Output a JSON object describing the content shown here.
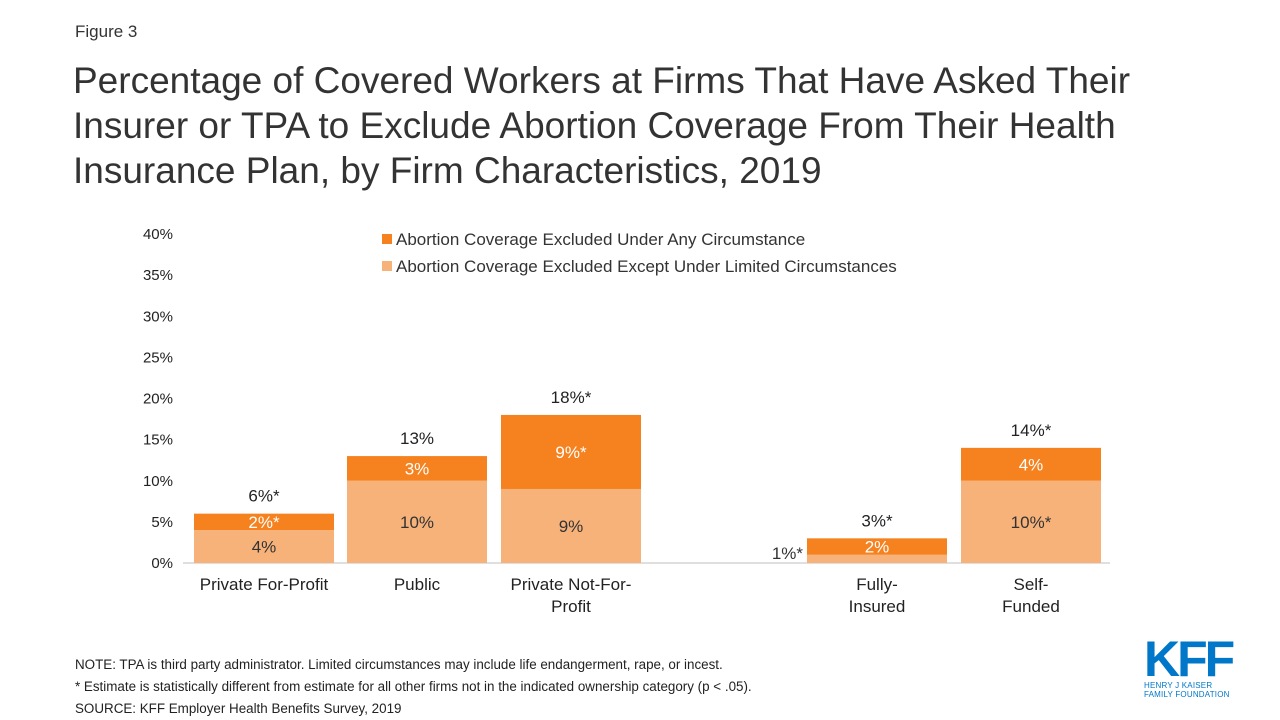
{
  "figure_label": "Figure 3",
  "title": "Percentage of Covered Workers at Firms That Have Asked Their Insurer or TPA to Exclude Abortion Coverage From Their Health Insurance Plan, by Firm Characteristics, 2019",
  "notes": {
    "note": "NOTE: TPA is third party administrator. Limited circumstances may include life endangerment, rape, or incest.",
    "asterisk": "* Estimate is statistically different from estimate for all other firms not in the indicated ownership category (p < .05).",
    "source": "SOURCE: KFF Employer Health Benefits Survey, 2019"
  },
  "logo": {
    "text": "KFF",
    "line1": "HENRY J KAISER",
    "line2": "FAMILY FOUNDATION"
  },
  "colors": {
    "any_circumstance": "#f5821f",
    "limited_circumstances": "#f7b27a"
  },
  "chart_data": {
    "type": "bar",
    "stacked": true,
    "title": "",
    "xlabel": "",
    "ylabel": "",
    "ylim": [
      0,
      40
    ],
    "yticks": [
      "0%",
      "5%",
      "10%",
      "15%",
      "20%",
      "25%",
      "30%",
      "35%",
      "40%"
    ],
    "grid": false,
    "legend_position": "top",
    "categories": [
      [
        "Private For-Profit"
      ],
      [
        "Public"
      ],
      [
        "Private Not-For-",
        "Profit"
      ],
      [
        "Fully-",
        "Insured"
      ],
      [
        "Self-",
        "Funded"
      ]
    ],
    "series": [
      {
        "name": "Abortion Coverage Excluded Except Under Limited Circumstances",
        "values": [
          4,
          10,
          9,
          1,
          10
        ],
        "labels": [
          "4%",
          "10%",
          "9%",
          "1%*",
          "10%*"
        ]
      },
      {
        "name": "Abortion Coverage Excluded Under Any Circumstance",
        "values": [
          2,
          3,
          9,
          2,
          4
        ],
        "labels": [
          "2%*",
          "3%",
          "9%*",
          "2%",
          "4%"
        ]
      }
    ],
    "totals": [
      6,
      13,
      18,
      3,
      14
    ],
    "total_labels": [
      "6%*",
      "13%",
      "18%*",
      "3%*",
      "14%*"
    ]
  }
}
